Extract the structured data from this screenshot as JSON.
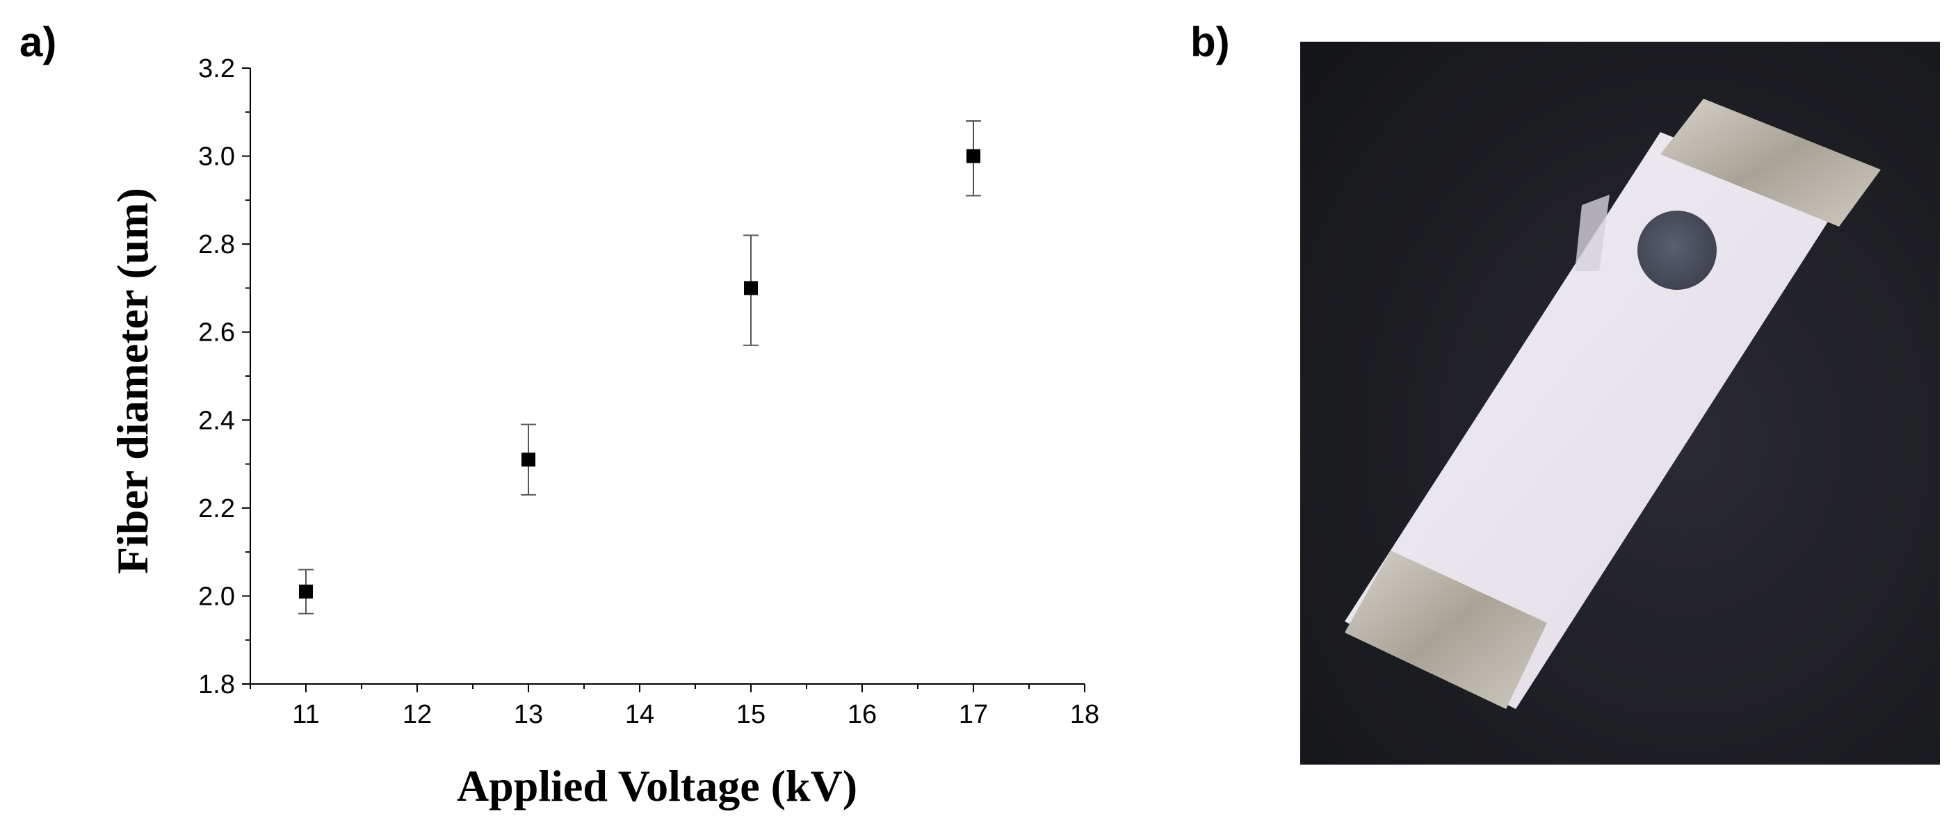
{
  "panels": {
    "a_label": "a)",
    "b_label": "b)"
  },
  "chart_data": {
    "type": "scatter",
    "title": "",
    "xlabel": "Applied Voltage (kV)",
    "ylabel": "Fiber diameter (um)",
    "xlim": [
      10.5,
      18
    ],
    "ylim": [
      1.8,
      3.2
    ],
    "xticks": [
      11,
      12,
      13,
      14,
      15,
      16,
      17,
      18
    ],
    "yticks": [
      1.8,
      2.0,
      2.2,
      2.4,
      2.6,
      2.8,
      3.0,
      3.2
    ],
    "grid": false,
    "marker": "square",
    "color": "#000000",
    "error_bar_color": "#555555",
    "points": [
      {
        "x": 11,
        "y": 2.01,
        "err_low": 1.96,
        "err_high": 2.06
      },
      {
        "x": 13,
        "y": 2.31,
        "err_low": 2.23,
        "err_high": 2.39
      },
      {
        "x": 15,
        "y": 2.7,
        "err_low": 2.57,
        "err_high": 2.82
      },
      {
        "x": 17,
        "y": 3.0,
        "err_low": 2.91,
        "err_high": 3.08
      }
    ]
  },
  "photo": {
    "background_color": "#1b1c20",
    "slide_color": "#ece8ee",
    "electrode_color": "#b7b2a8",
    "sample_spot_color": "#4a4d5c"
  }
}
